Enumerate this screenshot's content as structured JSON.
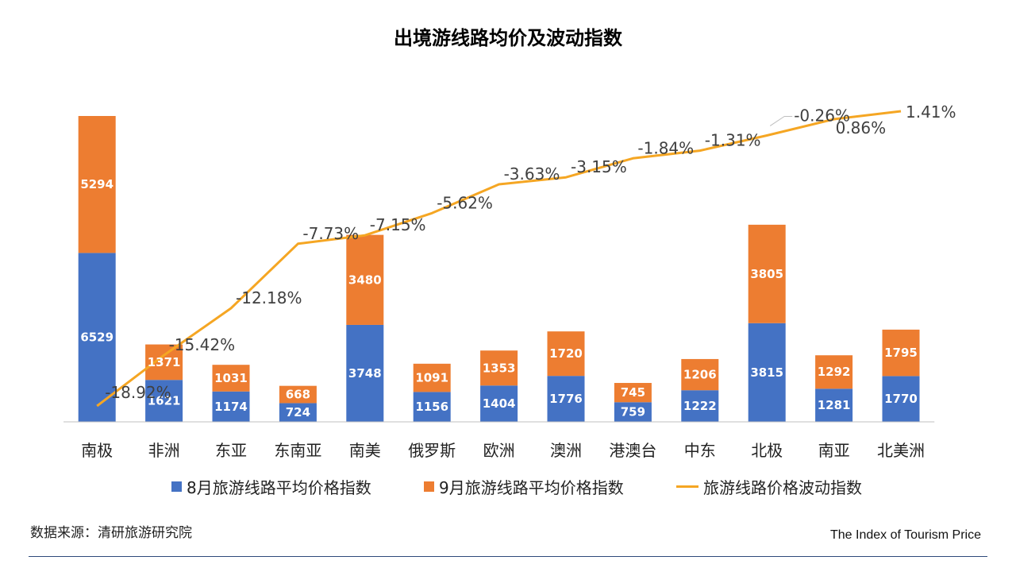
{
  "title": "出境游线路均价及波动指数",
  "colors": {
    "aug": "#4472C4",
    "sep": "#ED7D31",
    "index": "#F5A623",
    "axis": "#bfbfbf"
  },
  "chart_data": {
    "type": "bar",
    "stacked": true,
    "title": "出境游线路均价及波动指数",
    "categories": [
      "南极",
      "非洲",
      "东亚",
      "东南亚",
      "南美",
      "俄罗斯",
      "欧洲",
      "澳洲",
      "港澳台",
      "中东",
      "北极",
      "南亚",
      "北美洲"
    ],
    "series": [
      {
        "name": "8月旅游线路平均价格指数",
        "type": "bar",
        "values": [
          6529,
          1621,
          1174,
          724,
          3748,
          1156,
          1404,
          1776,
          759,
          1222,
          3815,
          1281,
          1770
        ]
      },
      {
        "name": "9月旅游线路平均价格指数",
        "type": "bar",
        "values": [
          5294,
          1371,
          1031,
          668,
          3480,
          1091,
          1353,
          1720,
          745,
          1206,
          3805,
          1292,
          1795
        ]
      },
      {
        "name": "旅游线路价格波动指数",
        "type": "line",
        "values": [
          -18.92,
          -15.42,
          -12.18,
          -7.73,
          -7.15,
          -5.62,
          -3.63,
          -3.15,
          -1.84,
          -1.31,
          -0.26,
          0.86,
          1.41
        ],
        "labels": [
          "-18.92%",
          "-15.42%",
          "-12.18%",
          "-7.73%",
          "-7.15%",
          "-5.62%",
          "-3.63%",
          "-3.15%",
          "-1.84%",
          "-1.31%",
          "-0.26%",
          "0.86%",
          "1.41%"
        ]
      }
    ],
    "grid": false,
    "legend_position": "bottom"
  },
  "source_text": "数据来源：清研旅游研究院",
  "caption": "The Index of Tourism Price"
}
